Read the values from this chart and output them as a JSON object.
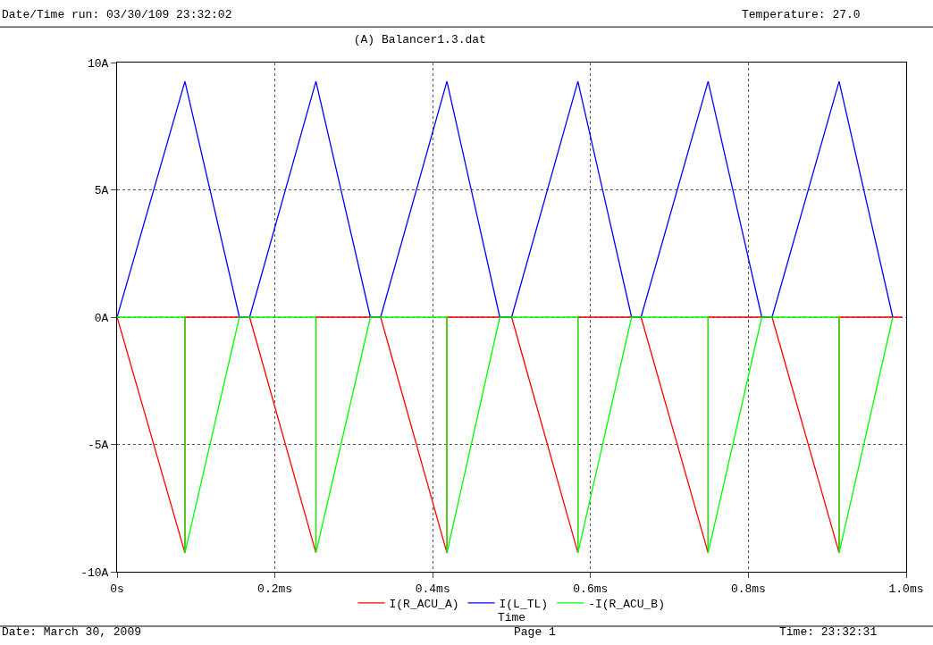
{
  "chart_data": {
    "type": "line",
    "title": "(A) Balancer1.3.dat",
    "xlabel": "Time",
    "annotations": [
      "Date/Time run: 03/30/109 23:32:02",
      "Temperature: 27.0",
      "Date: March 30, 2009",
      "Page 1",
      "Time: 23:32:31"
    ],
    "series": [
      {
        "name": "I(R_ACU_A)",
        "color": "#ff0000",
        "x": [
          0,
          0.086,
          0.086,
          0.168,
          0.252,
          0.252,
          0.334,
          0.418,
          0.418,
          0.5,
          0.584,
          0.584,
          0.664,
          0.749,
          0.749,
          0.83,
          0.915,
          0.915,
          0.995
        ],
        "values": [
          0,
          -9.26,
          0,
          0,
          -9.26,
          0,
          0,
          -9.26,
          0,
          0,
          -9.26,
          0,
          0,
          -9.26,
          0,
          0,
          -9.26,
          0,
          0
        ]
      },
      {
        "name": "I(L_TL)",
        "color": "#0000ff",
        "x": [
          0,
          0.086,
          0.155,
          0.168,
          0.252,
          0.321,
          0.334,
          0.418,
          0.485,
          0.5,
          0.584,
          0.652,
          0.664,
          0.749,
          0.817,
          0.83,
          0.915,
          0.983
        ],
        "values": [
          0,
          9.26,
          0,
          0,
          9.26,
          0,
          0,
          9.26,
          0,
          0,
          9.26,
          0,
          0,
          9.26,
          0,
          0,
          9.26,
          0
        ]
      },
      {
        "name": "-I(R_ACU_B)",
        "color": "#00ff00",
        "x": [
          0,
          0.086,
          0.086,
          0.155,
          0.252,
          0.252,
          0.321,
          0.418,
          0.418,
          0.485,
          0.584,
          0.584,
          0.652,
          0.749,
          0.749,
          0.817,
          0.915,
          0.915,
          0.983
        ],
        "values": [
          0,
          0,
          -9.26,
          0,
          0,
          -9.26,
          0,
          0,
          -9.26,
          0,
          0,
          -9.26,
          0,
          0,
          -9.26,
          0,
          0,
          -9.26,
          0
        ]
      }
    ],
    "xlim": [
      0,
      1.0
    ],
    "xticks": [
      {
        "value": 0,
        "label": "0s"
      },
      {
        "value": 0.2,
        "label": "0.2ms"
      },
      {
        "value": 0.4,
        "label": "0.4ms"
      },
      {
        "value": 0.6,
        "label": "0.6ms"
      },
      {
        "value": 0.8,
        "label": "0.8ms"
      },
      {
        "value": 1.0,
        "label": "1.0ms"
      }
    ],
    "ylim": [
      -10,
      10
    ],
    "yticks": [
      {
        "value": -10,
        "label": "-10A"
      },
      {
        "value": -5,
        "label": "-5A"
      },
      {
        "value": 0,
        "label": "0A"
      },
      {
        "value": 5,
        "label": "5A"
      },
      {
        "value": 10,
        "label": "10A"
      }
    ],
    "grid": true,
    "legend": "bottom",
    "line_style": "solid"
  }
}
